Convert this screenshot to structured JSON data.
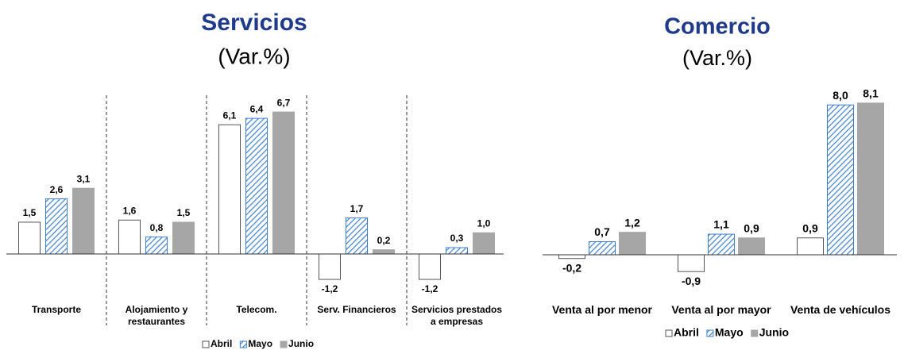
{
  "chart_data": [
    {
      "type": "bar",
      "title": "Servicios",
      "subtitle": "(Var.%)",
      "categories": [
        "Transporte",
        "Alojamiento y restaurantes",
        "Telecom.",
        "Serv. Financieros",
        "Servicios prestados a empresas"
      ],
      "series": [
        {
          "name": "Abril",
          "color": "#ffffff",
          "values": [
            1.5,
            1.6,
            6.1,
            -1.2,
            -1.2
          ],
          "value_labels": [
            "1,5",
            "1,6",
            "6,1",
            "-1,2",
            "-1,2"
          ]
        },
        {
          "name": "Mayo",
          "color": "#3f7fd0",
          "pattern": "hatch",
          "values": [
            2.6,
            0.8,
            6.4,
            1.7,
            0.3
          ],
          "value_labels": [
            "2,6",
            "0,8",
            "6,4",
            "1,7",
            "0,3"
          ]
        },
        {
          "name": "Junio",
          "color": "#a6a6a6",
          "values": [
            3.1,
            1.5,
            6.7,
            0.2,
            1.0
          ],
          "value_labels": [
            "3,1",
            "1,5",
            "6,7",
            "0,2",
            "1,0"
          ]
        }
      ],
      "ylim": [
        -2,
        7
      ],
      "separators": true,
      "legend": "bottom"
    },
    {
      "type": "bar",
      "title": "Comercio",
      "subtitle": "(Var.%)",
      "categories": [
        "Venta al por menor",
        "Venta al por mayor",
        "Venta de vehículos"
      ],
      "series": [
        {
          "name": "Abril",
          "color": "#ffffff",
          "values": [
            -0.2,
            -0.9,
            0.9
          ],
          "value_labels": [
            "-0,2",
            "-0,9",
            "0,9"
          ]
        },
        {
          "name": "Mayo",
          "color": "#3f7fd0",
          "pattern": "hatch",
          "values": [
            0.7,
            1.1,
            8.0
          ],
          "value_labels": [
            "0,7",
            "1,1",
            "8,0"
          ]
        },
        {
          "name": "Junio",
          "color": "#a6a6a6",
          "values": [
            1.2,
            0.9,
            8.1
          ],
          "value_labels": [
            "1,2",
            "0,9",
            "8,1"
          ]
        }
      ],
      "ylim": [
        -2,
        9
      ],
      "separators": false,
      "legend": "bottom"
    }
  ]
}
